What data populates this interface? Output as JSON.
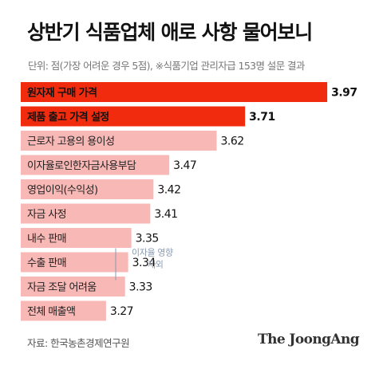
{
  "title": "상반기 식품업체 애로 사항 물어보니",
  "subtitle": "단위: 점(가장 어려운 경우 5점), ※식품기업 관리자급 153명 설문 결과",
  "source": "자료: 한국농촌경제연구원",
  "logo_text": "The JoongAng",
  "colors": {
    "highlight": "#f12c0e",
    "base": "#f7b8b6",
    "note": "#8a9ab0"
  },
  "chart_data": {
    "type": "bar",
    "orientation": "horizontal",
    "title": "상반기 식품업체 애로 사항 물어보니",
    "categories": [
      "원자재 구매 가격",
      "제품 출고 가격 설정",
      "근로자 고용의 용이성",
      "이자율로인한자금사용부담",
      "영업이익(수익성)",
      "자금 사정",
      "내수 판매",
      "수출 판매",
      "자금 조달 어려움",
      "전체 매출액"
    ],
    "values": [
      3.97,
      3.71,
      3.62,
      3.47,
      3.42,
      3.41,
      3.35,
      3.34,
      3.33,
      3.27
    ],
    "value_labels": [
      "3.97",
      "3.71",
      "3.62",
      "3.47",
      "3.42",
      "3.41",
      "3.35",
      "3.34",
      "3.33",
      "3.27"
    ],
    "highlighted": [
      0,
      1
    ],
    "annotation": {
      "lines": [
        "이자율 영향",
        "제외"
      ],
      "category": "수출 판매"
    },
    "xlim": [
      3.0,
      4.0
    ],
    "grid": false,
    "legend": "none"
  }
}
